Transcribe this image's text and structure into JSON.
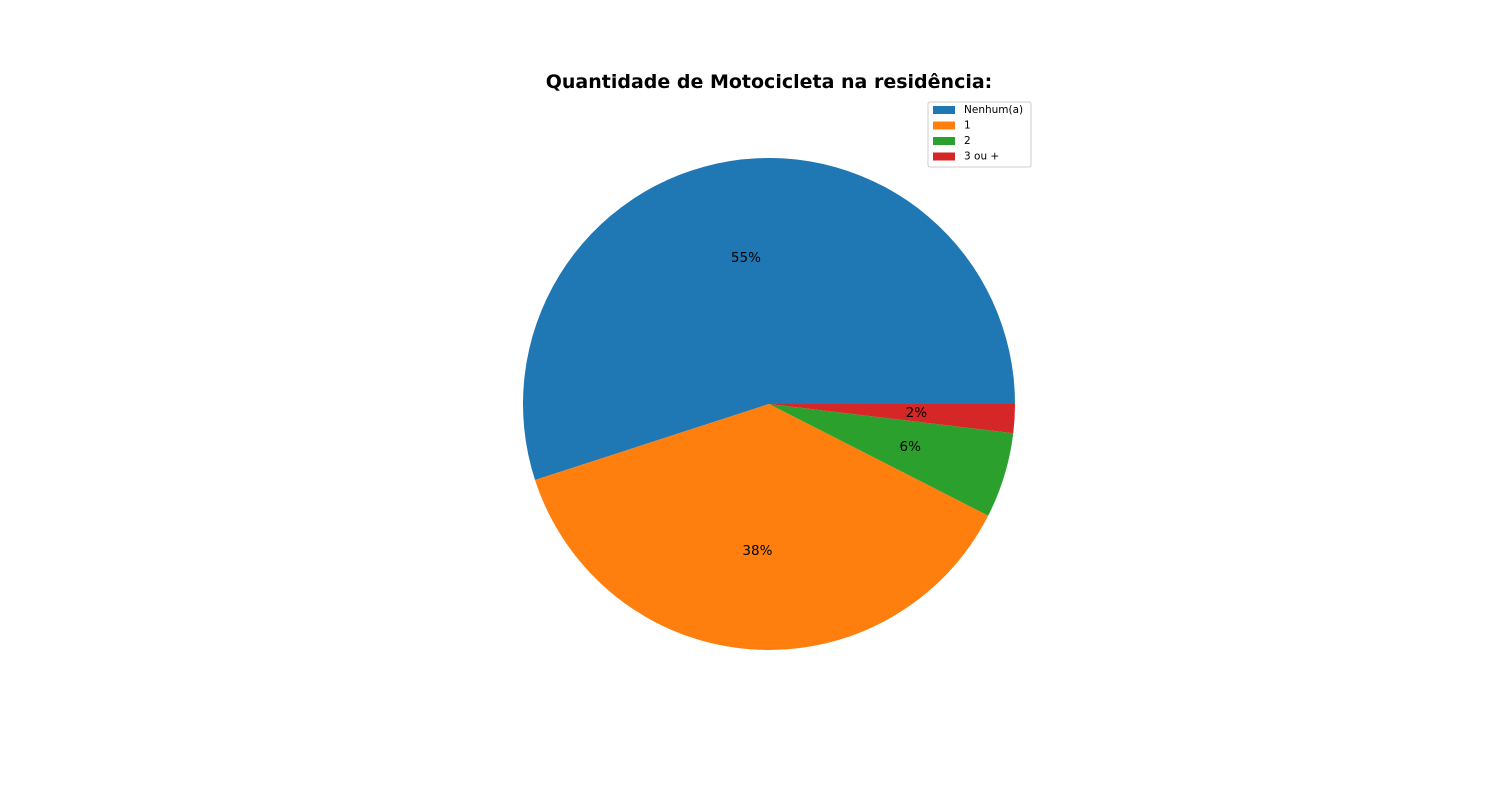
{
  "chart_data": {
    "type": "pie",
    "title": "Quantidade de Motocicleta na residência:",
    "start_angle": 0,
    "direction": "counterclockwise",
    "legend_placement": "upper-right",
    "slices": [
      {
        "label": "Nenhum(a)",
        "value": 55,
        "display": "55%",
        "color": "#1f77b4"
      },
      {
        "label": "1",
        "value": 37.5,
        "display": "38%",
        "color": "#ff7f0e"
      },
      {
        "label": "2",
        "value": 5.6,
        "display": "6%",
        "color": "#2ca02c"
      },
      {
        "label": "3 ou +",
        "value": 1.9,
        "display": "2%",
        "color": "#d62728"
      }
    ]
  }
}
